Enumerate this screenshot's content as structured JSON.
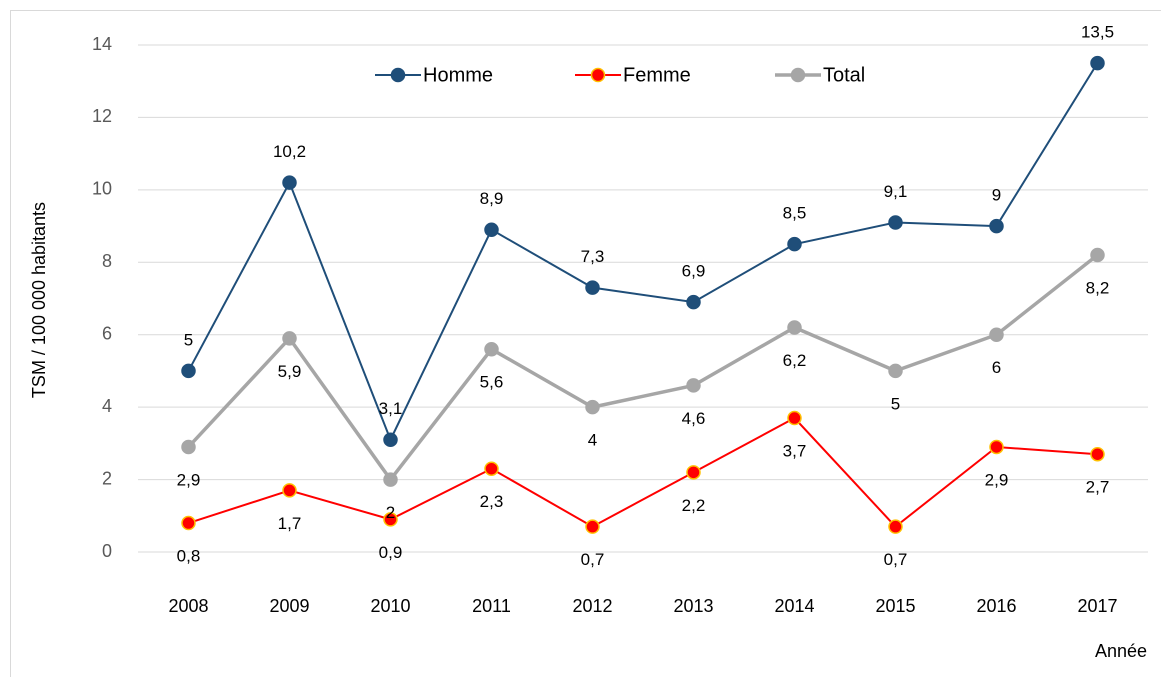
{
  "chart_data": {
    "type": "line",
    "ylabel": "TSM / 100 000 habitants",
    "xlabel": "Année",
    "categories": [
      "2008",
      "2009",
      "2010",
      "2011",
      "2012",
      "2013",
      "2014",
      "2015",
      "2016",
      "2017"
    ],
    "series": [
      {
        "name": "Homme",
        "color": "#1f4e79",
        "marker_edge": "#1f4e79",
        "label_position": "above",
        "values": [
          5,
          10.2,
          3.1,
          8.9,
          7.3,
          6.9,
          8.5,
          9.1,
          9,
          13.5
        ],
        "value_labels": [
          "5",
          "10,2",
          "3,1",
          "8,9",
          "7,3",
          "6,9",
          "8,5",
          "9,1",
          "9",
          "13,5"
        ]
      },
      {
        "name": "Femme",
        "color": "#ff0000",
        "marker_edge": "#ffc000",
        "label_position": "below",
        "values": [
          0.8,
          1.7,
          0.9,
          2.3,
          0.7,
          2.2,
          3.7,
          0.7,
          2.9,
          2.7
        ],
        "value_labels": [
          "0,8",
          "1,7",
          "0,9",
          "2,3",
          "0,7",
          "2,2",
          "3,7",
          "0,7",
          "2,9",
          "2,7"
        ]
      },
      {
        "name": "Total",
        "color": "#a6a6a6",
        "marker_edge": "#a6a6a6",
        "label_position": "below",
        "values": [
          2.9,
          5.9,
          2,
          5.6,
          4,
          4.6,
          6.2,
          5,
          6,
          8.2
        ],
        "value_labels": [
          "2,9",
          "5,9",
          "2",
          "5,6",
          "4",
          "4,6",
          "6,2",
          "5",
          "6",
          "8,2"
        ]
      }
    ],
    "ylim": [
      0,
      14
    ],
    "yticks": [
      0,
      2,
      4,
      6,
      8,
      10,
      12,
      14
    ],
    "grid": true,
    "legend": "top"
  }
}
